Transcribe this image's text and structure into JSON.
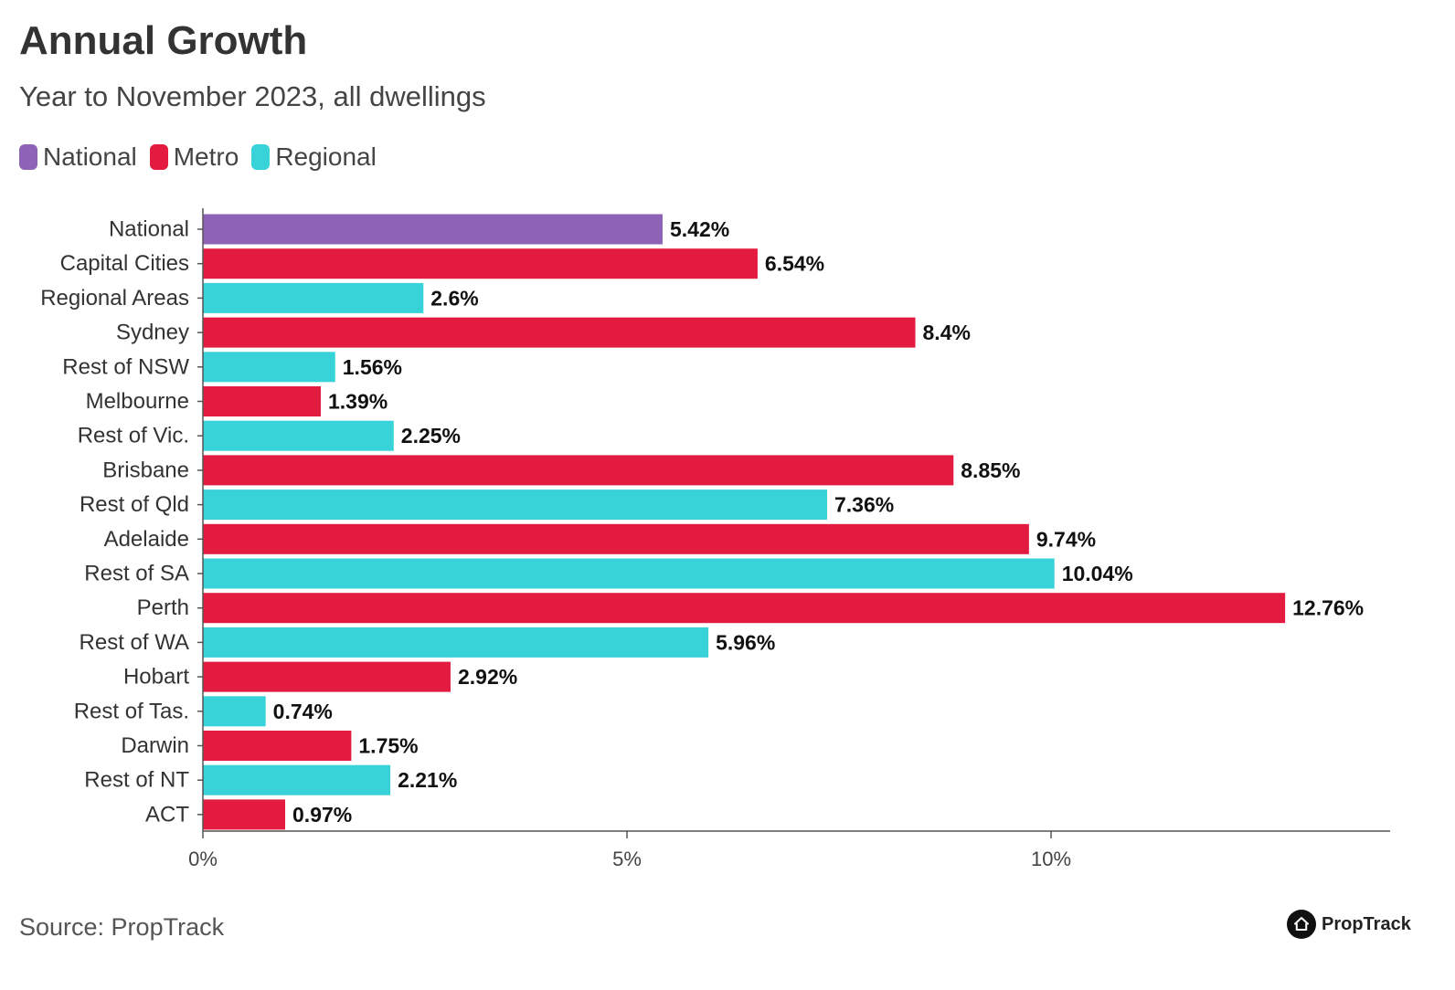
{
  "title": "Annual Growth",
  "subtitle": "Year to November 2023, all dwellings",
  "legend": [
    {
      "label": "National",
      "color": "#8E63B5"
    },
    {
      "label": "Metro",
      "color": "#E31B40"
    },
    {
      "label": "Regional",
      "color": "#38D3D8"
    }
  ],
  "source": "Source: PropTrack",
  "brand": {
    "name": "PropTrack",
    "icon": "house-icon"
  },
  "chart_data": {
    "type": "bar",
    "orientation": "horizontal",
    "title": "Annual Growth",
    "subtitle": "Year to November 2023, all dwellings",
    "categories": [
      "National",
      "Capital Cities",
      "Regional Areas",
      "Sydney",
      "Rest of NSW",
      "Melbourne",
      "Rest of Vic.",
      "Brisbane",
      "Rest of Qld",
      "Adelaide",
      "Rest of SA",
      "Perth",
      "Rest of WA",
      "Hobart",
      "Rest of Tas.",
      "Darwin",
      "Rest of NT",
      "ACT"
    ],
    "values": [
      5.42,
      6.54,
      2.6,
      8.4,
      1.56,
      1.39,
      2.25,
      8.85,
      7.36,
      9.74,
      10.04,
      12.76,
      5.96,
      2.92,
      0.74,
      1.75,
      2.21,
      0.97
    ],
    "value_labels": [
      "5.42%",
      "6.54%",
      "2.6%",
      "8.4%",
      "1.56%",
      "1.39%",
      "2.25%",
      "8.85%",
      "7.36%",
      "9.74%",
      "10.04%",
      "12.76%",
      "5.96%",
      "2.92%",
      "0.74%",
      "1.75%",
      "2.21%",
      "0.97%"
    ],
    "groups": [
      "National",
      "Metro",
      "Regional",
      "Metro",
      "Regional",
      "Metro",
      "Regional",
      "Metro",
      "Regional",
      "Metro",
      "Regional",
      "Metro",
      "Regional",
      "Metro",
      "Regional",
      "Metro",
      "Regional",
      "Metro"
    ],
    "colors": {
      "National": "#8E63B5",
      "Metro": "#E31B40",
      "Regional": "#38D3D8"
    },
    "xticks": [
      0,
      5,
      10
    ],
    "xtick_labels": [
      "0%",
      "5%",
      "10%"
    ],
    "xlim": [
      0,
      14
    ],
    "grid": false,
    "legend_position": "top-left"
  }
}
